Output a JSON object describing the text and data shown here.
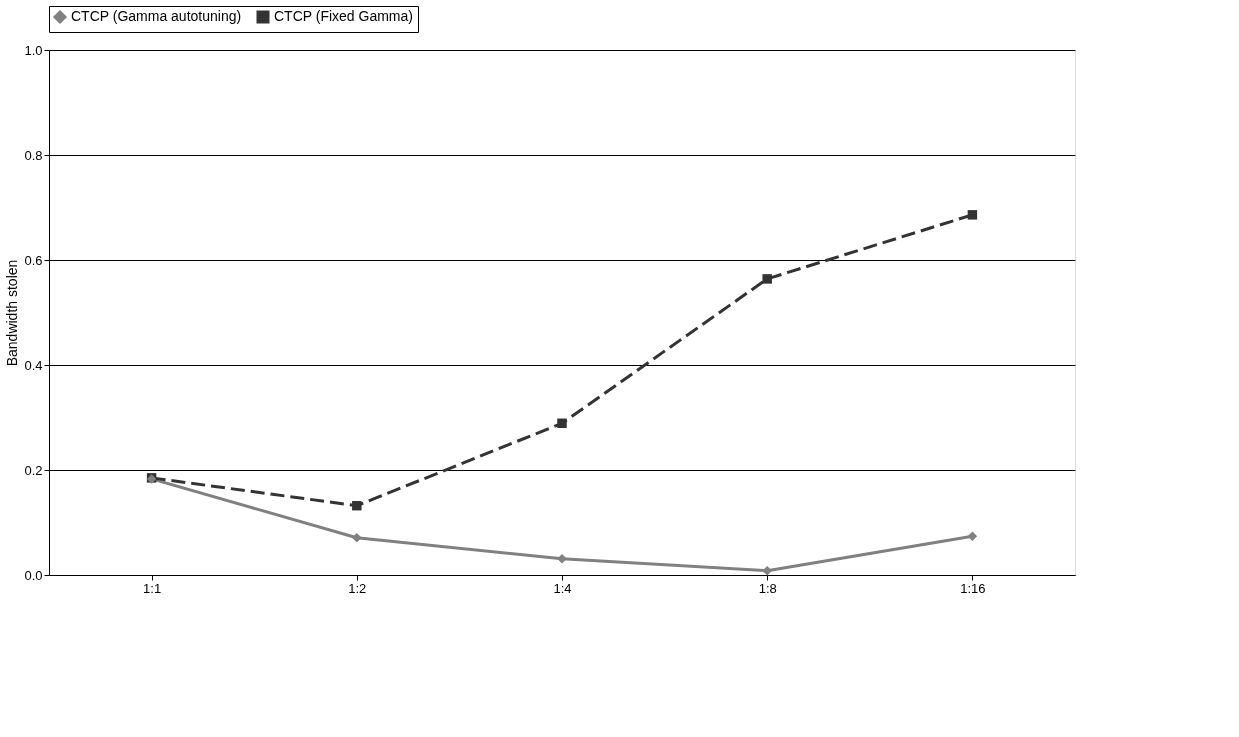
{
  "chart_data": {
    "type": "line",
    "categories": [
      "1:1",
      "1:2",
      "1:4",
      "1:8",
      "1:16"
    ],
    "ylabel": "Bandwidth stolen",
    "ylim": [
      0,
      1
    ],
    "yticks": [
      {
        "value": 0,
        "label": "0.0"
      },
      {
        "value": 0.2,
        "label": "0.2"
      },
      {
        "value": 0.4,
        "label": "0.4"
      },
      {
        "value": 0.6,
        "label": "0.6"
      },
      {
        "value": 0.8,
        "label": "0.8"
      },
      {
        "value": 1,
        "label": "1.0"
      }
    ],
    "grid": "y",
    "legend": "top",
    "series": [
      {
        "name": "CTCP (Gamma autotuning)",
        "color": "#808080",
        "marker": "diamond",
        "line_style": "solid",
        "values": [
          0.183,
          0.071,
          0.031,
          0.008,
          0.074
        ]
      },
      {
        "name": "CTCP (Fixed Gamma)",
        "color": "#333333",
        "marker": "square",
        "line_style": "dashed",
        "values": [
          0.185,
          0.132,
          0.289,
          0.564,
          0.686
        ]
      }
    ]
  }
}
